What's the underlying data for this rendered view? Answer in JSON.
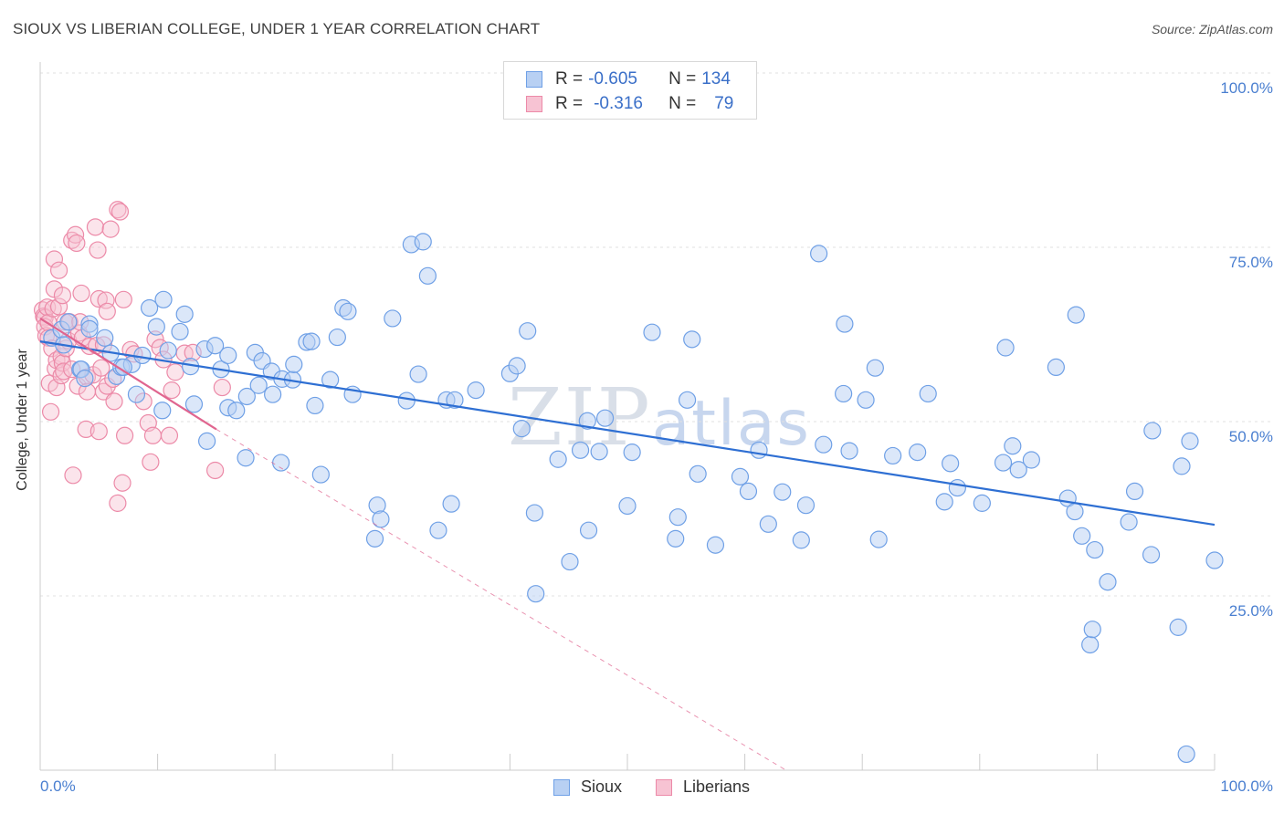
{
  "title": "SIOUX VS LIBERIAN COLLEGE, UNDER 1 YEAR CORRELATION CHART",
  "source": "Source: ZipAtlas.com",
  "watermark": {
    "zip": "ZIP",
    "atlas": "atlas"
  },
  "legend": {
    "rows": [
      {
        "r_label": "R = ",
        "r_value": "-0.605",
        "n_label": "N = ",
        "n_value": "134"
      },
      {
        "r_label": "R = ",
        "r_value": "-0.316",
        "n_label": "N = ",
        "n_value": "79"
      }
    ]
  },
  "bottom_legend": [
    "Sioux",
    "Liberians"
  ],
  "colors": {
    "sioux": "#6fa0e6",
    "sioux_fill": "#b8d0f3",
    "sioux_line": "#2e6fd3",
    "liberians": "#ec8aa8",
    "liberians_fill": "#f7c3d3",
    "liberians_line": "#e0658f",
    "tick_text": "#4a7fd0",
    "grid": "#e0e0e0"
  },
  "chart_data": {
    "type": "scatter",
    "title": "SIOUX VS LIBERIAN COLLEGE, UNDER 1 YEAR CORRELATION CHART",
    "xlabel": "",
    "ylabel": "College, Under 1 year",
    "xlim": [
      0,
      100
    ],
    "ylim": [
      0,
      104
    ],
    "x_tick_labels": [
      "0.0%",
      "100.0%"
    ],
    "y_tick_labels": [
      "100.0%",
      "75.0%",
      "50.0%",
      "25.0%"
    ],
    "y_ticks": [
      100,
      75,
      50,
      25
    ],
    "grid": true,
    "legend_position": "top-center",
    "series": [
      {
        "name": "Sioux",
        "r": -0.605,
        "n": 134,
        "trend": {
          "x0": 0,
          "y0": 61.5,
          "x1": 100,
          "y1": 35.2
        },
        "points": [
          [
            1.0,
            62.0
          ],
          [
            1.8,
            63.2
          ],
          [
            2.0,
            61.0
          ],
          [
            2.4,
            64.3
          ],
          [
            3.4,
            57.5
          ],
          [
            3.5,
            57.5
          ],
          [
            3.8,
            56.2
          ],
          [
            4.2,
            64.0
          ],
          [
            4.2,
            63.3
          ],
          [
            5.5,
            62.0
          ],
          [
            6.0,
            59.8
          ],
          [
            6.5,
            56.5
          ],
          [
            6.9,
            57.8
          ],
          [
            7.8,
            58.2
          ],
          [
            8.2,
            53.9
          ],
          [
            8.7,
            59.5
          ],
          [
            9.3,
            66.3
          ],
          [
            9.9,
            63.6
          ],
          [
            10.4,
            51.6
          ],
          [
            10.5,
            67.5
          ],
          [
            10.9,
            60.2
          ],
          [
            11.9,
            62.9
          ],
          [
            12.3,
            65.4
          ],
          [
            12.8,
            57.9
          ],
          [
            13.1,
            52.5
          ],
          [
            14.0,
            60.4
          ],
          [
            14.2,
            47.2
          ],
          [
            14.9,
            60.9
          ],
          [
            15.4,
            57.5
          ],
          [
            16.0,
            52.0
          ],
          [
            16.0,
            59.5
          ],
          [
            16.7,
            51.6
          ],
          [
            17.5,
            44.8
          ],
          [
            17.6,
            53.6
          ],
          [
            18.3,
            59.9
          ],
          [
            18.6,
            55.2
          ],
          [
            18.9,
            58.7
          ],
          [
            19.7,
            57.2
          ],
          [
            19.8,
            53.9
          ],
          [
            20.5,
            44.1
          ],
          [
            20.6,
            56.1
          ],
          [
            21.5,
            56.0
          ],
          [
            21.6,
            58.2
          ],
          [
            22.7,
            61.4
          ],
          [
            23.1,
            61.5
          ],
          [
            23.4,
            52.3
          ],
          [
            23.9,
            42.4
          ],
          [
            24.7,
            56.0
          ],
          [
            25.3,
            62.1
          ],
          [
            25.8,
            66.3
          ],
          [
            26.2,
            65.8
          ],
          [
            26.6,
            53.9
          ],
          [
            28.5,
            33.2
          ],
          [
            28.7,
            38.0
          ],
          [
            29.0,
            36.0
          ],
          [
            30.0,
            64.8
          ],
          [
            31.2,
            53.0
          ],
          [
            31.6,
            75.4
          ],
          [
            32.2,
            56.8
          ],
          [
            32.6,
            75.8
          ],
          [
            33.0,
            70.9
          ],
          [
            33.9,
            34.4
          ],
          [
            34.6,
            53.1
          ],
          [
            35.0,
            38.2
          ],
          [
            35.3,
            53.1
          ],
          [
            37.1,
            54.5
          ],
          [
            40.0,
            56.9
          ],
          [
            40.6,
            58.0
          ],
          [
            41.0,
            49.0
          ],
          [
            41.5,
            63.0
          ],
          [
            42.1,
            36.9
          ],
          [
            42.2,
            25.3
          ],
          [
            44.1,
            44.6
          ],
          [
            45.1,
            29.9
          ],
          [
            46.0,
            45.9
          ],
          [
            46.6,
            50.1
          ],
          [
            46.7,
            34.4
          ],
          [
            47.6,
            45.7
          ],
          [
            48.1,
            50.5
          ],
          [
            50.0,
            37.9
          ],
          [
            50.4,
            45.6
          ],
          [
            52.1,
            62.8
          ],
          [
            54.1,
            33.2
          ],
          [
            54.3,
            36.3
          ],
          [
            55.1,
            53.1
          ],
          [
            55.5,
            61.8
          ],
          [
            56.0,
            42.5
          ],
          [
            57.5,
            32.3
          ],
          [
            59.6,
            42.1
          ],
          [
            60.3,
            40.0
          ],
          [
            61.2,
            45.9
          ],
          [
            62.0,
            35.3
          ],
          [
            63.2,
            39.9
          ],
          [
            64.8,
            33.0
          ],
          [
            65.2,
            38.0
          ],
          [
            66.3,
            74.1
          ],
          [
            66.7,
            46.7
          ],
          [
            68.5,
            64.0
          ],
          [
            68.4,
            54.0
          ],
          [
            68.9,
            45.8
          ],
          [
            70.3,
            53.1
          ],
          [
            71.1,
            57.7
          ],
          [
            71.4,
            33.1
          ],
          [
            72.6,
            45.1
          ],
          [
            74.7,
            45.6
          ],
          [
            75.6,
            54.0
          ],
          [
            77.0,
            38.5
          ],
          [
            77.5,
            44.0
          ],
          [
            78.1,
            40.5
          ],
          [
            80.2,
            38.3
          ],
          [
            82.0,
            44.1
          ],
          [
            82.2,
            60.6
          ],
          [
            82.8,
            46.5
          ],
          [
            83.3,
            43.1
          ],
          [
            84.4,
            44.5
          ],
          [
            86.5,
            57.8
          ],
          [
            87.5,
            39.0
          ],
          [
            88.2,
            65.3
          ],
          [
            88.1,
            37.1
          ],
          [
            88.7,
            33.6
          ],
          [
            89.4,
            18.0
          ],
          [
            89.6,
            20.2
          ],
          [
            89.8,
            31.6
          ],
          [
            90.9,
            27.0
          ],
          [
            92.7,
            35.6
          ],
          [
            93.2,
            40.0
          ],
          [
            94.7,
            48.7
          ],
          [
            94.6,
            30.9
          ],
          [
            96.9,
            20.5
          ],
          [
            97.2,
            43.6
          ],
          [
            97.9,
            47.2
          ],
          [
            100.0,
            30.1
          ],
          [
            97.6,
            2.3
          ],
          [
            7.1,
            57.8
          ]
        ]
      },
      {
        "name": "Liberians",
        "r": -0.316,
        "n": 79,
        "trend": {
          "x0": 0,
          "y0": 64.8,
          "x1": 15,
          "y1": 48.9
        },
        "trend_dashed": {
          "x0": 15,
          "y0": 48.9,
          "x1": 63.5,
          "y1": 0
        },
        "points": [
          [
            0.2,
            66.0
          ],
          [
            0.3,
            65.1
          ],
          [
            0.4,
            64.9
          ],
          [
            0.4,
            63.6
          ],
          [
            0.5,
            62.3
          ],
          [
            0.6,
            66.4
          ],
          [
            0.7,
            64.2
          ],
          [
            0.7,
            62.0
          ],
          [
            0.8,
            55.5
          ],
          [
            0.9,
            51.4
          ],
          [
            1.0,
            60.5
          ],
          [
            1.1,
            66.2
          ],
          [
            1.2,
            73.3
          ],
          [
            1.2,
            69.0
          ],
          [
            1.3,
            57.6
          ],
          [
            1.4,
            58.8
          ],
          [
            1.4,
            54.9
          ],
          [
            1.6,
            71.7
          ],
          [
            1.6,
            66.5
          ],
          [
            1.8,
            59.3
          ],
          [
            1.8,
            56.6
          ],
          [
            1.9,
            58.4
          ],
          [
            1.9,
            68.1
          ],
          [
            2.0,
            57.2
          ],
          [
            2.1,
            64.3
          ],
          [
            2.2,
            60.5
          ],
          [
            2.4,
            61.6
          ],
          [
            2.5,
            64.3
          ],
          [
            2.7,
            76.0
          ],
          [
            2.7,
            57.5
          ],
          [
            2.8,
            42.3
          ],
          [
            3.0,
            76.8
          ],
          [
            3.1,
            75.6
          ],
          [
            3.2,
            55.1
          ],
          [
            3.3,
            62.7
          ],
          [
            3.4,
            64.3
          ],
          [
            3.5,
            68.4
          ],
          [
            3.6,
            62.0
          ],
          [
            3.9,
            48.9
          ],
          [
            4.0,
            56.4
          ],
          [
            4.0,
            54.3
          ],
          [
            4.2,
            60.8
          ],
          [
            4.5,
            56.7
          ],
          [
            4.7,
            77.9
          ],
          [
            4.8,
            60.9
          ],
          [
            4.9,
            74.6
          ],
          [
            5.0,
            67.6
          ],
          [
            5.0,
            48.6
          ],
          [
            5.2,
            57.7
          ],
          [
            5.4,
            54.3
          ],
          [
            5.4,
            61.0
          ],
          [
            5.6,
            67.4
          ],
          [
            5.7,
            55.1
          ],
          [
            5.7,
            65.8
          ],
          [
            6.0,
            77.6
          ],
          [
            6.2,
            56.1
          ],
          [
            6.3,
            52.9
          ],
          [
            6.6,
            80.4
          ],
          [
            6.6,
            38.3
          ],
          [
            6.8,
            80.1
          ],
          [
            7.0,
            41.2
          ],
          [
            7.1,
            67.5
          ],
          [
            7.2,
            48.0
          ],
          [
            7.7,
            60.3
          ],
          [
            8.0,
            59.7
          ],
          [
            8.8,
            52.9
          ],
          [
            9.2,
            49.8
          ],
          [
            9.4,
            44.2
          ],
          [
            9.6,
            48.0
          ],
          [
            9.8,
            61.8
          ],
          [
            10.2,
            60.6
          ],
          [
            10.5,
            58.9
          ],
          [
            11.0,
            48.0
          ],
          [
            11.2,
            54.5
          ],
          [
            11.5,
            57.1
          ],
          [
            12.3,
            59.8
          ],
          [
            13.0,
            59.9
          ],
          [
            14.9,
            43.0
          ],
          [
            15.5,
            54.9
          ]
        ]
      }
    ]
  }
}
